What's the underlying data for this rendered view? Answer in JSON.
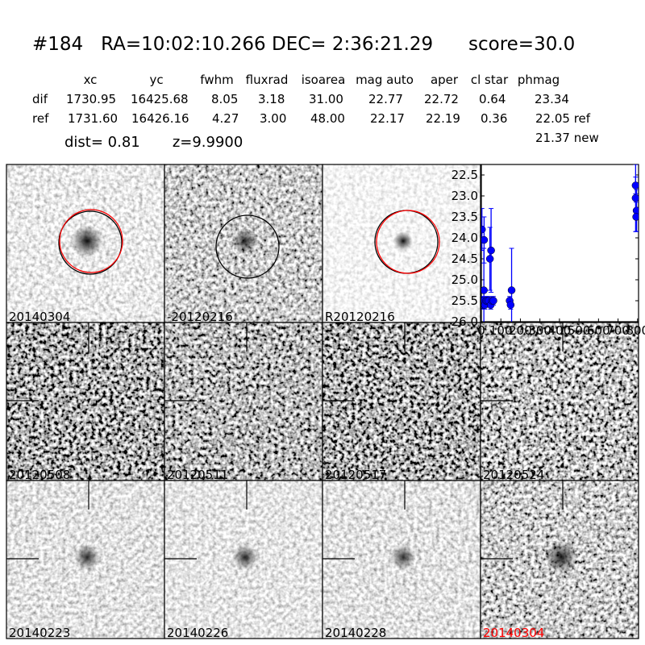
{
  "title": {
    "id": "#184",
    "coords": "RA=10:02:10.266 DEC= 2:36:21.29",
    "score": "score=30.0"
  },
  "table": {
    "headers": [
      "xc",
      "yc",
      "fwhm",
      "fluxrad",
      "isoarea",
      "mag auto",
      "aper",
      "cl star",
      "phmag"
    ],
    "rows": [
      {
        "label": "dif",
        "values": [
          "1730.95",
          "16425.68",
          "8.05",
          "3.18",
          "31.00",
          "22.77",
          "22.72",
          "0.64",
          "23.34"
        ]
      },
      {
        "label": "ref",
        "values": [
          "1731.60",
          "16426.16",
          "4.27",
          "3.00",
          "48.00",
          "22.17",
          "22.19",
          "0.36",
          "22.05 ref"
        ]
      }
    ],
    "extra": "21.37 new"
  },
  "dist_text": "dist=  0.81",
  "z_text": "z=9.9900",
  "stamps": [
    {
      "label": "20140304",
      "circles": [
        "black",
        "red"
      ]
    },
    {
      "label": "-20120216",
      "circles": [
        "black"
      ]
    },
    {
      "label": "R20120216",
      "circles": [
        "black",
        "red"
      ]
    },
    {
      "label": "20120508"
    },
    {
      "label": "20120511"
    },
    {
      "label": "20120517"
    },
    {
      "label": "20120524"
    },
    {
      "label": "20140223"
    },
    {
      "label": "20140226"
    },
    {
      "label": "20140228"
    },
    {
      "label": "20140304",
      "highlight_color": "#ff0000"
    }
  ],
  "chart_data": {
    "type": "scatter",
    "title": "",
    "xlabel": "",
    "ylabel": "",
    "xlim": [
      0,
      805
    ],
    "ylim": [
      26.0,
      22.25
    ],
    "y_inverted": true,
    "xticks": [
      "0",
      "100",
      "200",
      "300",
      "400",
      "500",
      "600",
      "700",
      "800"
    ],
    "yticks": [
      "22.5",
      "23.0",
      "23.5",
      "24.0",
      "24.5",
      "25.0",
      "25.5",
      "26.0"
    ],
    "marker_color": "#0000ff",
    "points": [
      {
        "x": 3,
        "y": 23.8,
        "err": 0.5
      },
      {
        "x": 2,
        "y": 25.5,
        "err": 0.1
      },
      {
        "x": 6,
        "y": 25.6,
        "err": 0.1
      },
      {
        "x": 10,
        "y": 25.5,
        "err": 0.1
      },
      {
        "x": 13,
        "y": 25.25,
        "err": 1.0
      },
      {
        "x": 14,
        "y": 24.05,
        "err": 0.55
      },
      {
        "x": 18,
        "y": 25.6,
        "err": 0.1
      },
      {
        "x": 24,
        "y": 25.5,
        "err": 0.1
      },
      {
        "x": 30,
        "y": 25.5,
        "err": 0.1
      },
      {
        "x": 38,
        "y": 25.5,
        "err": 0.1
      },
      {
        "x": 44,
        "y": 24.5,
        "err": 0.75
      },
      {
        "x": 50,
        "y": 24.3,
        "err": 1.0
      },
      {
        "x": 48,
        "y": 25.6,
        "err": 0.1
      },
      {
        "x": 55,
        "y": 25.5,
        "err": 0.1
      },
      {
        "x": 62,
        "y": 25.5,
        "err": 0.1
      },
      {
        "x": 145,
        "y": 25.5,
        "err": 0.1
      },
      {
        "x": 150,
        "y": 25.6,
        "err": 0.1
      },
      {
        "x": 155,
        "y": 25.25,
        "err": 1.0
      },
      {
        "x": 790,
        "y": 22.75,
        "err": 0.2
      },
      {
        "x": 790,
        "y": 23.05,
        "err": 0.8
      },
      {
        "x": 795,
        "y": 23.35,
        "err": 0.5
      },
      {
        "x": 793,
        "y": 23.5,
        "err": 0.35
      }
    ]
  }
}
